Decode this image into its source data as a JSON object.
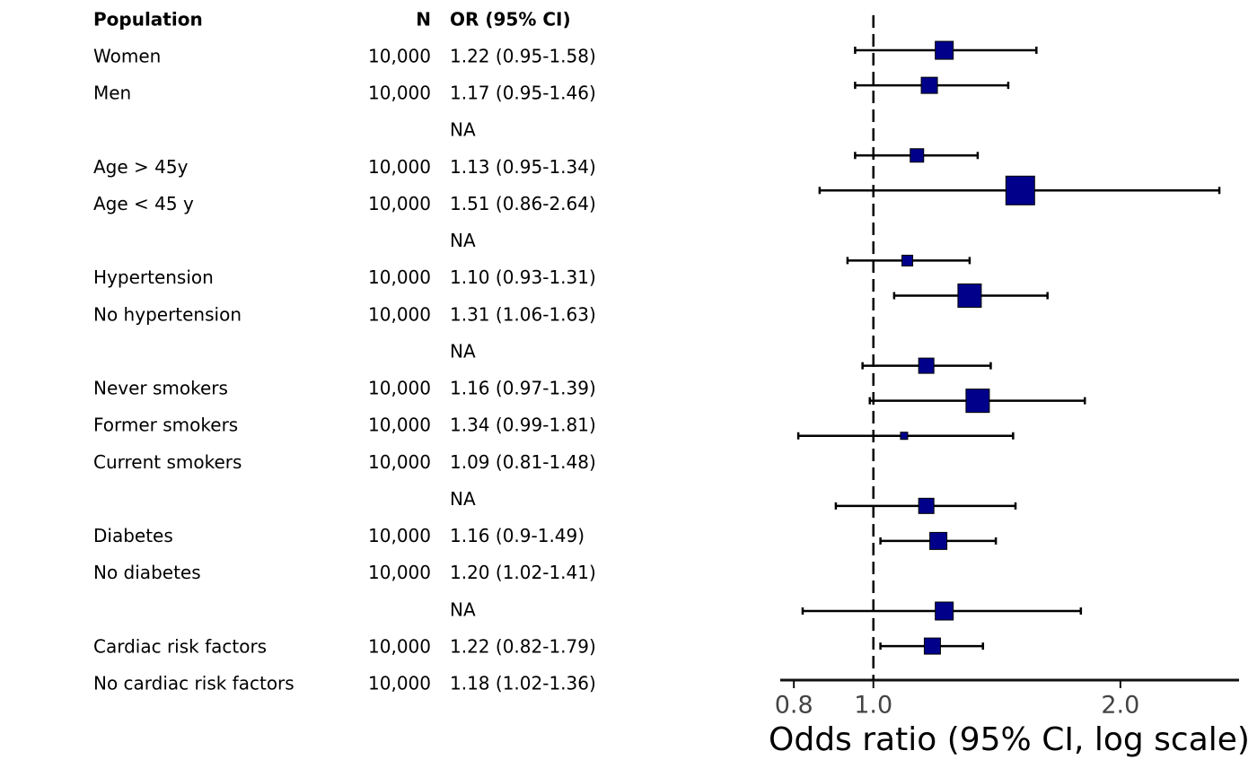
{
  "table": {
    "columns": [
      "Population",
      "N",
      "OR (95% CI)"
    ],
    "rows": [
      [
        "Women",
        "10,000",
        "1.22 (0.95-1.58)"
      ],
      [
        "Men",
        "10,000",
        "1.17 (0.95-1.46)"
      ],
      [
        null,
        null,
        "NA"
      ],
      [
        "Age > 45y",
        "10,000",
        "1.13 (0.95-1.34)"
      ],
      [
        "Age < 45 y",
        "10,000",
        "1.51 (0.86-2.64)"
      ],
      [
        null,
        null,
        "NA"
      ],
      [
        "Hypertension",
        "10,000",
        "1.10 (0.93-1.31)"
      ],
      [
        "No hypertension",
        "10,000",
        "1.31 (1.06-1.63)"
      ],
      [
        null,
        null,
        "NA"
      ],
      [
        "Never smokers",
        "10,000",
        "1.16 (0.97-1.39)"
      ],
      [
        "Former smokers",
        "10,000",
        "1.34 (0.99-1.81)"
      ],
      [
        "Current smokers",
        "10,000",
        "1.09 (0.81-1.48)"
      ],
      [
        null,
        null,
        "NA"
      ],
      [
        "Diabetes",
        "10,000",
        "1.16 (0.9-1.49)"
      ],
      [
        "No diabetes",
        "10,000",
        "1.20 (1.02-1.41)"
      ],
      [
        null,
        null,
        "NA"
      ],
      [
        "Cardiac risk factors",
        "10,000",
        "1.22 (0.82-1.79)"
      ],
      [
        "No cardiac risk factors",
        "10,000",
        "1.18 (1.02-1.36)"
      ]
    ]
  },
  "chart_data": {
    "type": "forest",
    "xlabel": "Odds ratio (95% CI, log scale)",
    "xscale": "log",
    "xlim": [
      0.77,
      2.79
    ],
    "xticks": [
      0.8,
      {
        "value": 1,
        "label": "1.0"
      },
      {
        "value": 2,
        "label": "2.0"
      }
    ],
    "reference": 1,
    "color": "#00008b",
    "values": [
      1.22,
      1.17,
      null,
      1.13,
      1.51,
      null,
      1.1,
      1.31,
      null,
      1.16,
      1.34,
      1.09,
      null,
      1.16,
      1.2,
      null,
      1.22,
      1.18
    ],
    "lower": [
      0.95,
      0.95,
      null,
      0.95,
      0.86,
      null,
      0.93,
      1.06,
      null,
      0.97,
      0.99,
      0.81,
      null,
      0.9,
      1.02,
      null,
      0.82,
      1.02
    ],
    "upper": [
      1.58,
      1.46,
      null,
      1.34,
      2.64,
      null,
      1.31,
      1.63,
      null,
      1.39,
      1.81,
      1.48,
      null,
      1.49,
      1.41,
      null,
      1.79,
      1.36
    ],
    "weights": [
      20,
      18,
      null,
      15,
      32,
      null,
      12,
      26,
      null,
      17,
      26,
      8,
      null,
      17,
      19,
      null,
      20,
      18
    ]
  }
}
